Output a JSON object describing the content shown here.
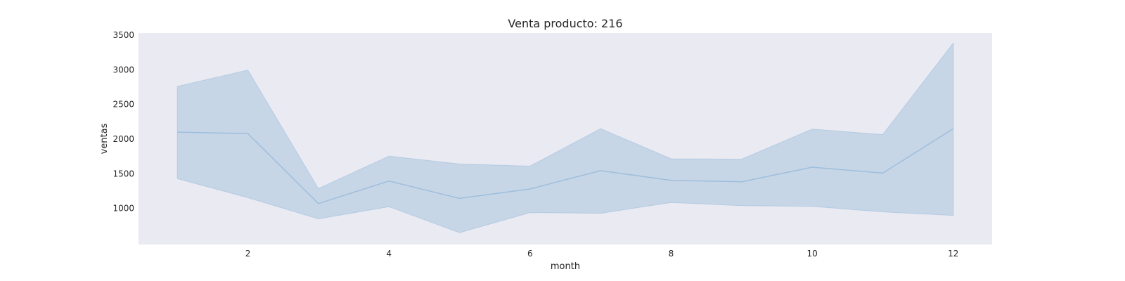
{
  "chart_data": {
    "type": "area",
    "title": "Venta producto: 216",
    "xlabel": "month",
    "ylabel": "ventas",
    "xlim": [
      0.45,
      12.55
    ],
    "ylim": [
      480,
      3530
    ],
    "x_ticks": [
      2,
      4,
      6,
      8,
      10,
      12
    ],
    "x_tick_labels": [
      "2",
      "4",
      "6",
      "8",
      "10",
      "12"
    ],
    "y_ticks": [
      1000,
      1500,
      2000,
      2500,
      3000,
      3500
    ],
    "y_tick_labels": [
      "1000",
      "1500",
      "2000",
      "2500",
      "3000",
      "3500"
    ],
    "grid": false,
    "x": [
      1,
      2,
      3,
      4,
      5,
      6,
      7,
      8,
      9,
      10,
      11,
      12
    ],
    "series": [
      {
        "role": "mean",
        "values": [
          2100,
          2080,
          1070,
          1395,
          1145,
          1280,
          1545,
          1405,
          1385,
          1595,
          1510,
          2150
        ]
      },
      {
        "role": "upper",
        "values": [
          2760,
          2995,
          1285,
          1755,
          1640,
          1610,
          2150,
          1715,
          1710,
          2145,
          2065,
          3385
        ]
      },
      {
        "role": "lower",
        "values": [
          1430,
          1155,
          850,
          1025,
          650,
          940,
          930,
          1085,
          1040,
          1030,
          950,
          900
        ]
      }
    ],
    "colors": {
      "line": "#9ebedc",
      "band": "#a9c4df",
      "plot_background": "#eaeaf2"
    }
  }
}
